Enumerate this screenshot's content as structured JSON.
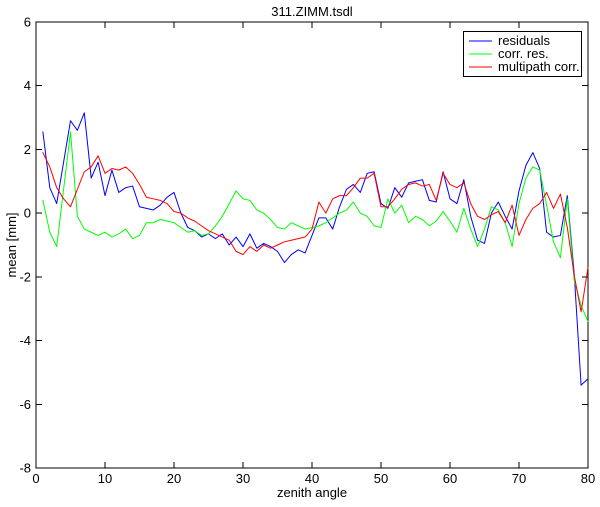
{
  "figure": {
    "background": "#ffffff",
    "axis_color": "#000000",
    "text_color": "#000000"
  },
  "chart_data": {
    "type": "line",
    "title": "311.ZIMM.tsdl",
    "xlabel": "zenith angle",
    "ylabel": "mean [mm]",
    "xlim": [
      0,
      80
    ],
    "ylim": [
      -8,
      6
    ],
    "xticks": [
      0,
      10,
      20,
      30,
      40,
      50,
      60,
      70,
      80
    ],
    "yticks": [
      6,
      4,
      2,
      0,
      -2,
      -4,
      -6,
      -8
    ],
    "grid": false,
    "legend_position": "top-right",
    "x": [
      1,
      2,
      3,
      4,
      5,
      6,
      7,
      8,
      9,
      10,
      11,
      12,
      13,
      14,
      15,
      16,
      17,
      18,
      19,
      20,
      21,
      22,
      23,
      24,
      25,
      26,
      27,
      28,
      29,
      30,
      31,
      32,
      33,
      34,
      35,
      36,
      37,
      38,
      39,
      40,
      41,
      42,
      43,
      44,
      45,
      46,
      47,
      48,
      49,
      50,
      51,
      52,
      53,
      54,
      55,
      56,
      57,
      58,
      59,
      60,
      61,
      62,
      63,
      64,
      65,
      66,
      67,
      68,
      69,
      70,
      71,
      72,
      73,
      74,
      75,
      76,
      77,
      78,
      79,
      80
    ],
    "series": [
      {
        "name": "residuals",
        "color": "#0000ff",
        "values": [
          2.55,
          0.8,
          0.3,
          1.6,
          2.9,
          2.6,
          3.15,
          1.1,
          1.6,
          0.55,
          1.35,
          0.65,
          0.8,
          0.85,
          0.2,
          0.15,
          0.1,
          0.25,
          0.5,
          0.65,
          0.0,
          -0.45,
          -0.55,
          -0.75,
          -0.65,
          -0.8,
          -0.65,
          -1.0,
          -0.75,
          -1.05,
          -0.65,
          -1.1,
          -0.95,
          -1.05,
          -1.2,
          -1.55,
          -1.3,
          -1.15,
          -1.25,
          -0.7,
          -0.15,
          -0.15,
          -0.5,
          0.2,
          0.75,
          0.9,
          0.65,
          1.25,
          1.3,
          0.3,
          0.15,
          0.8,
          0.5,
          0.95,
          1.0,
          1.05,
          0.4,
          0.35,
          1.3,
          0.45,
          0.3,
          1.05,
          -0.1,
          -0.85,
          -0.95,
          0.0,
          0.35,
          -0.1,
          -0.5,
          0.7,
          1.5,
          1.9,
          1.4,
          -0.6,
          -0.75,
          -0.7,
          0.55,
          -1.9,
          -5.4,
          -5.2
        ]
      },
      {
        "name": "corr. res.",
        "color": "#00ff00",
        "values": [
          0.4,
          -0.6,
          -1.05,
          0.75,
          2.55,
          -0.1,
          -0.5,
          -0.6,
          -0.7,
          -0.6,
          -0.75,
          -0.65,
          -0.5,
          -0.8,
          -0.7,
          -0.3,
          -0.3,
          -0.2,
          -0.25,
          -0.3,
          -0.45,
          -0.6,
          -0.55,
          -0.7,
          -0.65,
          -0.4,
          -0.1,
          0.3,
          0.7,
          0.45,
          0.4,
          0.1,
          0.0,
          -0.2,
          -0.45,
          -0.5,
          -0.3,
          -0.4,
          -0.5,
          -0.45,
          -0.4,
          -0.3,
          -0.15,
          0.0,
          0.1,
          0.35,
          0.0,
          -0.1,
          -0.4,
          -0.45,
          0.45,
          0.0,
          0.25,
          -0.3,
          -0.1,
          -0.2,
          -0.4,
          -0.25,
          0.05,
          -0.25,
          -0.6,
          0.15,
          -0.5,
          -1.05,
          -0.5,
          0.2,
          0.1,
          -0.3,
          -1.05,
          0.3,
          1.1,
          1.45,
          1.35,
          0.25,
          -0.9,
          -1.4,
          0.45,
          -2.1,
          -2.9,
          -3.4
        ]
      },
      {
        "name": "multipath corr.",
        "color": "#ff0000",
        "values": [
          1.9,
          1.45,
          0.8,
          0.45,
          0.2,
          0.75,
          1.3,
          1.45,
          1.8,
          1.25,
          1.4,
          1.35,
          1.45,
          1.25,
          0.9,
          0.5,
          0.45,
          0.4,
          0.3,
          0.05,
          0.0,
          -0.15,
          -0.25,
          -0.4,
          -0.55,
          -0.65,
          -0.75,
          -0.85,
          -1.2,
          -1.3,
          -1.05,
          -1.2,
          -1.0,
          -1.1,
          -1.0,
          -0.9,
          -0.85,
          -0.8,
          -0.75,
          -0.5,
          0.35,
          0.0,
          0.45,
          0.55,
          0.55,
          0.8,
          1.1,
          1.1,
          1.25,
          0.2,
          0.2,
          0.45,
          0.75,
          0.9,
          0.95,
          0.85,
          0.9,
          0.4,
          1.25,
          0.9,
          0.8,
          0.95,
          0.3,
          -0.1,
          -0.2,
          -0.05,
          0.05,
          -0.3,
          0.25,
          -0.7,
          -0.2,
          0.15,
          0.3,
          0.65,
          0.15,
          0.6,
          -0.45,
          -1.95,
          -3.1,
          -1.7
        ]
      }
    ]
  }
}
